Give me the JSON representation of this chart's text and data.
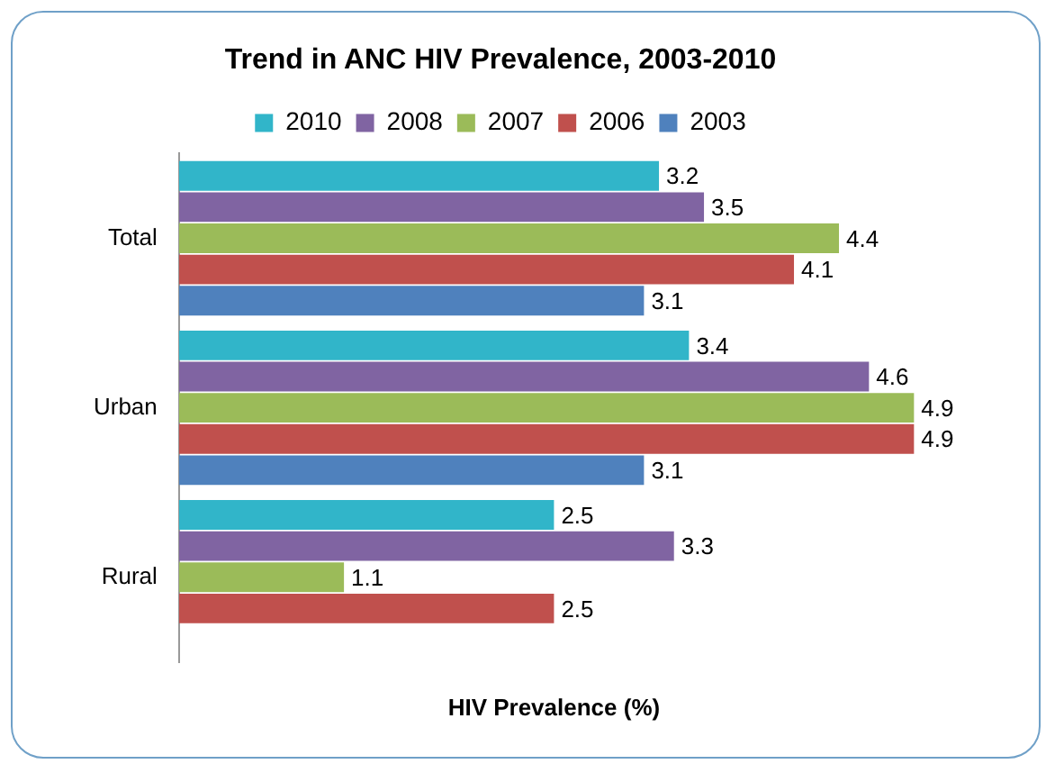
{
  "chart_data": {
    "type": "bar",
    "orientation": "horizontal",
    "title": "Trend in ANC HIV Prevalence, 2003-2010",
    "xlabel": "HIV Prevalence (%)",
    "categories": [
      "Total",
      "Urban",
      "Rural"
    ],
    "series": [
      {
        "name": "2010",
        "color": "#31b5c9",
        "values": [
          3.2,
          3.4,
          2.5
        ]
      },
      {
        "name": "2008",
        "color": "#8064a2",
        "values": [
          3.5,
          4.6,
          3.3
        ]
      },
      {
        "name": "2007",
        "color": "#9bbb59",
        "values": [
          4.4,
          4.9,
          1.1
        ]
      },
      {
        "name": "2006",
        "color": "#c0504d",
        "values": [
          4.1,
          4.9,
          2.5
        ]
      },
      {
        "name": "2003",
        "color": "#4f81bd",
        "values": [
          3.1,
          3.1,
          null
        ]
      }
    ],
    "legend": "top",
    "data_labels": true,
    "grid": false,
    "tick_labels": "y"
  }
}
